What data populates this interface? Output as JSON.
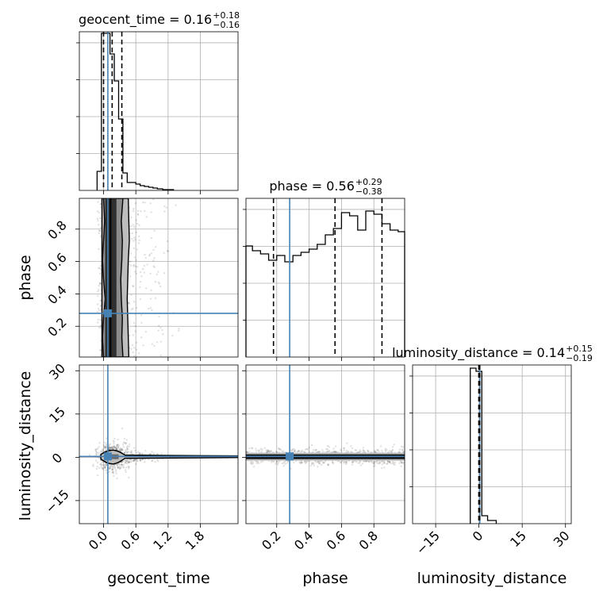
{
  "chart_data": {
    "type": "corner",
    "truth_color": "#4682b4",
    "hist_color": "#000000",
    "grid": true,
    "parameters": [
      {
        "name": "geocent_time",
        "xlabel": "geocent_time",
        "ylabel": "",
        "range": [
          -0.45,
          2.5
        ],
        "ticks": [
          0.0,
          0.6,
          1.2,
          1.8
        ],
        "tick_labels": [
          "0.0",
          "0.6",
          "1.2",
          "1.8"
        ],
        "truth": 0.08,
        "title_main": "geocent_time = 0.16",
        "title_sup": "+0.18",
        "title_sub": "−0.16",
        "quantiles": [
          0.0,
          0.16,
          0.34
        ],
        "hist": {
          "edges": [
            -0.12,
            -0.04,
            0.04,
            0.12,
            0.2,
            0.28,
            0.36,
            0.44,
            0.52,
            0.6,
            0.68,
            0.76,
            0.84,
            0.92,
            1.0,
            1.1,
            1.3
          ],
          "density": [
            0.12,
            0.99,
            0.99,
            0.86,
            0.69,
            0.45,
            0.11,
            0.05,
            0.05,
            0.04,
            0.03,
            0.025,
            0.02,
            0.015,
            0.01,
            0.005
          ]
        }
      },
      {
        "name": "phase",
        "xlabel": "phase",
        "ylabel": "phase",
        "range": [
          0.01,
          0.99
        ],
        "ticks": [
          0.2,
          0.4,
          0.6,
          0.8
        ],
        "tick_labels": [
          "0.2",
          "0.4",
          "0.6",
          "0.8"
        ],
        "truth": 0.28,
        "title_main": "phase = 0.56",
        "title_sup": "+0.29",
        "title_sub": "−0.38",
        "quantiles": [
          0.18,
          0.56,
          0.85
        ],
        "hist": {
          "edges": [
            0.01,
            0.05,
            0.1,
            0.15,
            0.2,
            0.25,
            0.3,
            0.35,
            0.4,
            0.45,
            0.5,
            0.55,
            0.6,
            0.65,
            0.7,
            0.75,
            0.8,
            0.85,
            0.9,
            0.95,
            0.99
          ],
          "density": [
            0.7,
            0.67,
            0.65,
            0.61,
            0.64,
            0.6,
            0.64,
            0.66,
            0.68,
            0.71,
            0.77,
            0.81,
            0.91,
            0.89,
            0.8,
            0.92,
            0.9,
            0.84,
            0.8,
            0.79
          ]
        }
      },
      {
        "name": "luminosity_distance",
        "xlabel": "luminosity_distance",
        "ylabel": "luminosity_distance",
        "range": [
          -23.0,
          32.0
        ],
        "ticks": [
          -15,
          0,
          15,
          30
        ],
        "tick_labels": [
          "−15",
          "0",
          "15",
          "30"
        ],
        "truth": 0.3,
        "title_main": "luminosity_distance = 0.14",
        "title_sup": "+0.15",
        "title_sub": "−0.19",
        "quantiles": [
          -0.05,
          0.14,
          0.29
        ],
        "hist": {
          "edges": [
            -3.0,
            -1.0,
            1.0,
            3.0,
            6.0
          ],
          "density": [
            0.98,
            0.96,
            0.05,
            0.02
          ]
        }
      }
    ],
    "contours_2d": {
      "phase_vs_geocent_time": {
        "outer_left": [
          0.01,
          0.98
        ],
        "outer_right": [
          0.47,
          0.46,
          0.45,
          0.44,
          0.45,
          0.46,
          0.48,
          0.47,
          0.46
        ],
        "inner_left": [
          0.0,
          -0.02,
          0.0,
          0.03,
          0.0,
          -0.02,
          0.0,
          0.02,
          0.0
        ],
        "inner_right": [
          0.36,
          0.34,
          0.35,
          0.33,
          0.32,
          0.34,
          0.35,
          0.33,
          0.36
        ]
      }
    }
  }
}
